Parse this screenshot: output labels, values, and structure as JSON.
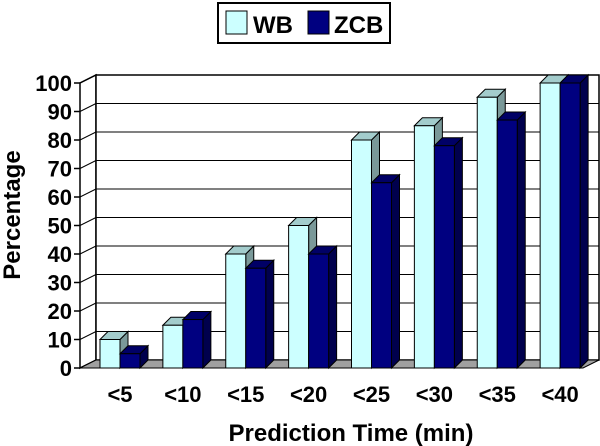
{
  "chart_data": {
    "type": "bar",
    "style": "3d",
    "xlabel": "Prediction Time (min)",
    "ylabel": "Percentage",
    "ylim": [
      0,
      100
    ],
    "yticks": [
      0,
      10,
      20,
      30,
      40,
      50,
      60,
      70,
      80,
      90,
      100
    ],
    "grid": true,
    "legend": "top",
    "categories": [
      "<5",
      "<10",
      "<15",
      "<20",
      "<25",
      "<30",
      "<35",
      "<40"
    ],
    "series": [
      {
        "name": "WB",
        "color": "#ccffff",
        "values": [
          10,
          15,
          40,
          50,
          80,
          85,
          95,
          100
        ]
      },
      {
        "name": "ZCB",
        "color": "#000080",
        "values": [
          5,
          17,
          35,
          40,
          65,
          78,
          87,
          100
        ]
      }
    ]
  }
}
